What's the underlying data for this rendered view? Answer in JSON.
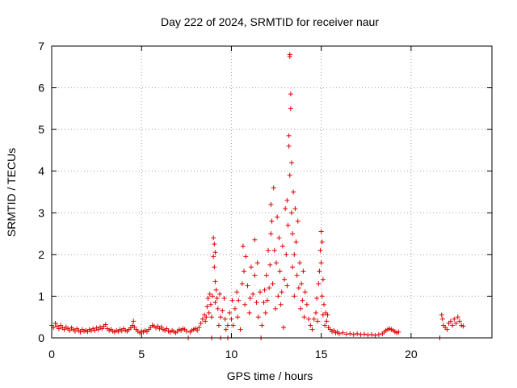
{
  "chart_data": {
    "type": "scatter",
    "title": "Day 222 of 2024, SRMTID for receiver naur",
    "xlabel": "GPS time / hours",
    "ylabel": "SRMTID / TECUs",
    "xlim": [
      0,
      24.5
    ],
    "ylim": [
      0,
      7
    ],
    "xticks": [
      0,
      5,
      10,
      15,
      20
    ],
    "yticks": [
      0,
      1,
      2,
      3,
      4,
      5,
      6,
      7
    ],
    "grid": true,
    "marker": "+",
    "color": "#e00000",
    "series": [
      {
        "name": "SRMTID",
        "points": [
          [
            0.0,
            0.3
          ],
          [
            0.1,
            0.25
          ],
          [
            0.2,
            0.35
          ],
          [
            0.3,
            0.28
          ],
          [
            0.4,
            0.22
          ],
          [
            0.5,
            0.3
          ],
          [
            0.6,
            0.24
          ],
          [
            0.7,
            0.2
          ],
          [
            0.8,
            0.26
          ],
          [
            0.9,
            0.22
          ],
          [
            1.0,
            0.18
          ],
          [
            1.1,
            0.24
          ],
          [
            1.2,
            0.2
          ],
          [
            1.3,
            0.16
          ],
          [
            1.4,
            0.22
          ],
          [
            1.5,
            0.18
          ],
          [
            1.6,
            0.14
          ],
          [
            1.7,
            0.2
          ],
          [
            1.8,
            0.16
          ],
          [
            1.9,
            0.18
          ],
          [
            2.0,
            0.15
          ],
          [
            2.1,
            0.2
          ],
          [
            2.2,
            0.17
          ],
          [
            2.3,
            0.22
          ],
          [
            2.4,
            0.18
          ],
          [
            2.5,
            0.24
          ],
          [
            2.6,
            0.2
          ],
          [
            2.7,
            0.26
          ],
          [
            2.8,
            0.22
          ],
          [
            2.9,
            0.28
          ],
          [
            3.0,
            0.32
          ],
          [
            3.1,
            0.22
          ],
          [
            3.2,
            0.18
          ],
          [
            3.3,
            0.2
          ],
          [
            3.4,
            0.16
          ],
          [
            3.5,
            0.14
          ],
          [
            3.6,
            0.18
          ],
          [
            3.7,
            0.15
          ],
          [
            3.8,
            0.2
          ],
          [
            3.9,
            0.17
          ],
          [
            4.0,
            0.22
          ],
          [
            4.1,
            0.18
          ],
          [
            4.2,
            0.16
          ],
          [
            4.3,
            0.2
          ],
          [
            4.4,
            0.24
          ],
          [
            4.5,
            0.3
          ],
          [
            4.55,
            0.4
          ],
          [
            4.6,
            0.26
          ],
          [
            4.7,
            0.2
          ],
          [
            4.8,
            0.16
          ],
          [
            4.9,
            0.12
          ],
          [
            5.0,
            0.16
          ],
          [
            5.1,
            0.14
          ],
          [
            5.2,
            0.18
          ],
          [
            5.3,
            0.15
          ],
          [
            5.4,
            0.2
          ],
          [
            5.5,
            0.25
          ],
          [
            5.6,
            0.3
          ],
          [
            5.7,
            0.28
          ],
          [
            5.8,
            0.24
          ],
          [
            5.9,
            0.28
          ],
          [
            6.0,
            0.22
          ],
          [
            6.1,
            0.26
          ],
          [
            6.2,
            0.2
          ],
          [
            6.3,
            0.18
          ],
          [
            6.4,
            0.22
          ],
          [
            6.5,
            0.16
          ],
          [
            6.6,
            0.14
          ],
          [
            6.7,
            0.18
          ],
          [
            6.8,
            0.15
          ],
          [
            6.9,
            0.12
          ],
          [
            7.0,
            0.16
          ],
          [
            7.1,
            0.2
          ],
          [
            7.2,
            0.18
          ],
          [
            7.3,
            0.22
          ],
          [
            7.4,
            0.2
          ],
          [
            7.5,
            0.16
          ],
          [
            7.6,
            0.0
          ],
          [
            7.7,
            0.14
          ],
          [
            7.8,
            0.18
          ],
          [
            7.9,
            0.2
          ],
          [
            8.0,
            0.22
          ],
          [
            8.1,
            0.18
          ],
          [
            8.2,
            0.25
          ],
          [
            8.3,
            0.35
          ],
          [
            8.4,
            0.45
          ],
          [
            8.5,
            0.55
          ],
          [
            8.55,
            0.4
          ],
          [
            8.6,
            0.5
          ],
          [
            8.65,
            0.75
          ],
          [
            8.7,
            0.95
          ],
          [
            8.75,
            0.6
          ],
          [
            8.8,
            1.05
          ],
          [
            8.85,
            0.8
          ],
          [
            8.9,
            0.5
          ],
          [
            8.9,
            0.0
          ],
          [
            8.95,
            1.0
          ],
          [
            9.0,
            2.4
          ],
          [
            9.0,
            1.95
          ],
          [
            9.05,
            2.25
          ],
          [
            9.05,
            1.7
          ],
          [
            9.1,
            2.05
          ],
          [
            9.1,
            1.35
          ],
          [
            9.1,
            0.85
          ],
          [
            9.15,
            1.15
          ],
          [
            9.2,
            0.95
          ],
          [
            9.25,
            0.7
          ],
          [
            9.3,
            0.3
          ],
          [
            9.35,
            1.05
          ],
          [
            9.4,
            0.5
          ],
          [
            9.4,
            0.0
          ],
          [
            9.5,
            0.65
          ],
          [
            9.6,
            0.95
          ],
          [
            9.65,
            0.45
          ],
          [
            9.7,
            0.2
          ],
          [
            9.8,
            0.3
          ],
          [
            9.8,
            0.0
          ],
          [
            9.9,
            0.6
          ],
          [
            10.0,
            0.45
          ],
          [
            10.05,
            0.9
          ],
          [
            10.1,
            0.3
          ],
          [
            10.2,
            0.7
          ],
          [
            10.3,
            1.1
          ],
          [
            10.35,
            0.5
          ],
          [
            10.4,
            0.9
          ],
          [
            10.5,
            0.2
          ],
          [
            10.6,
            1.3
          ],
          [
            10.65,
            2.2
          ],
          [
            10.7,
            1.6
          ],
          [
            10.75,
            0.8
          ],
          [
            10.8,
            1.95
          ],
          [
            10.9,
            1.25
          ],
          [
            11.0,
            0.6
          ],
          [
            11.05,
            0.95
          ],
          [
            11.1,
            1.7
          ],
          [
            11.2,
            1.05
          ],
          [
            11.3,
            2.35
          ],
          [
            11.3,
            1.5
          ],
          [
            11.4,
            0.85
          ],
          [
            11.45,
            1.8
          ],
          [
            11.5,
            0.5
          ],
          [
            11.6,
            1.1
          ],
          [
            11.65,
            0.0
          ],
          [
            11.7,
            0.3
          ],
          [
            11.8,
            0.85
          ],
          [
            11.85,
            1.15
          ],
          [
            11.9,
            0.6
          ],
          [
            11.95,
            1.5
          ],
          [
            12.0,
            0.9
          ],
          [
            12.05,
            2.1
          ],
          [
            12.1,
            1.2
          ],
          [
            12.15,
            1.75
          ],
          [
            12.2,
            2.5
          ],
          [
            12.2,
            3.2
          ],
          [
            12.25,
            2.8
          ],
          [
            12.3,
            1.3
          ],
          [
            12.35,
            3.6
          ],
          [
            12.4,
            2.1
          ],
          [
            12.45,
            0.7
          ],
          [
            12.5,
            1.8
          ],
          [
            12.55,
            2.9
          ],
          [
            12.6,
            1.0
          ],
          [
            12.65,
            2.4
          ],
          [
            12.7,
            1.6
          ],
          [
            12.75,
            0.8
          ],
          [
            12.8,
            1.1
          ],
          [
            12.85,
            2.2
          ],
          [
            12.9,
            0.25
          ],
          [
            12.95,
            1.4
          ],
          [
            13.0,
            3.1
          ],
          [
            13.05,
            2.0
          ],
          [
            13.1,
            3.3
          ],
          [
            13.1,
            1.25
          ],
          [
            13.15,
            2.7
          ],
          [
            13.2,
            4.6
          ],
          [
            13.2,
            4.85
          ],
          [
            13.25,
            3.9
          ],
          [
            13.25,
            6.8
          ],
          [
            13.25,
            6.75
          ],
          [
            13.3,
            5.85
          ],
          [
            13.3,
            5.5
          ],
          [
            13.35,
            4.2
          ],
          [
            13.35,
            3.0
          ],
          [
            13.4,
            2.5
          ],
          [
            13.4,
            1.7
          ],
          [
            13.45,
            3.5
          ],
          [
            13.5,
            2.0
          ],
          [
            13.5,
            1.0
          ],
          [
            13.55,
            3.1
          ],
          [
            13.6,
            2.3
          ],
          [
            13.65,
            1.5
          ],
          [
            13.7,
            2.8
          ],
          [
            13.75,
            1.2
          ],
          [
            13.8,
            1.8
          ],
          [
            13.85,
            0.7
          ],
          [
            13.9,
            1.3
          ],
          [
            13.95,
            0.9
          ],
          [
            14.0,
            1.6
          ],
          [
            14.05,
            0.5
          ],
          [
            14.1,
            1.1
          ],
          [
            14.2,
            0.8
          ],
          [
            14.3,
            0.45
          ],
          [
            14.4,
            0.3
          ],
          [
            14.5,
            0.2
          ],
          [
            14.6,
            0.45
          ],
          [
            14.7,
            0.6
          ],
          [
            14.75,
            0.95
          ],
          [
            14.8,
            0.4
          ],
          [
            14.85,
            1.3
          ],
          [
            14.9,
            1.6
          ],
          [
            14.95,
            2.1
          ],
          [
            15.0,
            2.55
          ],
          [
            15.0,
            1.8
          ],
          [
            15.05,
            2.3
          ],
          [
            15.05,
            1.0
          ],
          [
            15.1,
            1.4
          ],
          [
            15.1,
            0.55
          ],
          [
            15.15,
            0.8
          ],
          [
            15.2,
            0.3
          ],
          [
            15.25,
            0.6
          ],
          [
            15.3,
            0.4
          ],
          [
            15.35,
            0.55
          ],
          [
            15.4,
            0.25
          ],
          [
            15.5,
            0.2
          ],
          [
            15.6,
            0.15
          ],
          [
            15.7,
            0.18
          ],
          [
            15.8,
            0.12
          ],
          [
            15.9,
            0.14
          ],
          [
            16.0,
            0.1
          ],
          [
            16.2,
            0.12
          ],
          [
            16.4,
            0.09
          ],
          [
            16.6,
            0.1
          ],
          [
            16.8,
            0.08
          ],
          [
            17.0,
            0.1
          ],
          [
            17.2,
            0.08
          ],
          [
            17.4,
            0.09
          ],
          [
            17.6,
            0.07
          ],
          [
            17.8,
            0.08
          ],
          [
            18.0,
            0.06
          ],
          [
            18.2,
            0.08
          ],
          [
            18.4,
            0.1
          ],
          [
            18.5,
            0.14
          ],
          [
            18.6,
            0.18
          ],
          [
            18.7,
            0.2
          ],
          [
            18.8,
            0.22
          ],
          [
            18.9,
            0.2
          ],
          [
            19.0,
            0.18
          ],
          [
            19.1,
            0.15
          ],
          [
            19.2,
            0.12
          ],
          [
            19.3,
            0.14
          ],
          [
            21.6,
            0.0
          ],
          [
            21.7,
            0.55
          ],
          [
            21.75,
            0.45
          ],
          [
            21.8,
            0.3
          ],
          [
            21.9,
            0.25
          ],
          [
            22.0,
            0.2
          ],
          [
            22.1,
            0.35
          ],
          [
            22.2,
            0.4
          ],
          [
            22.3,
            0.3
          ],
          [
            22.4,
            0.45
          ],
          [
            22.5,
            0.35
          ],
          [
            22.6,
            0.5
          ],
          [
            22.7,
            0.4
          ],
          [
            22.8,
            0.3
          ],
          [
            22.9,
            0.28
          ]
        ]
      }
    ]
  }
}
